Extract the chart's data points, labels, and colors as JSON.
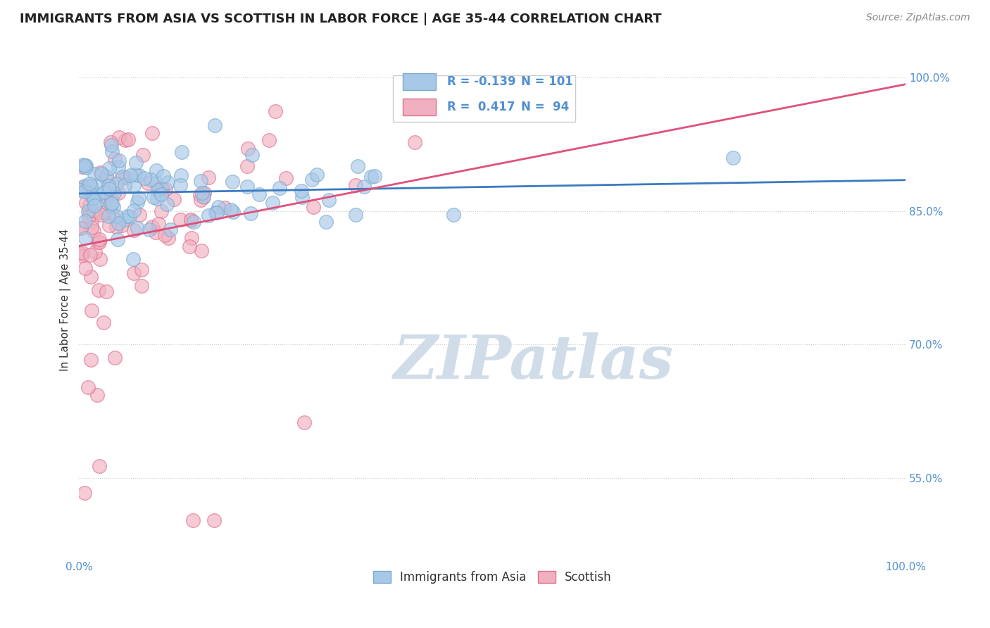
{
  "title": "IMMIGRANTS FROM ASIA VS SCOTTISH IN LABOR FORCE | AGE 35-44 CORRELATION CHART",
  "source": "Source: ZipAtlas.com",
  "ylabel": "In Labor Force | Age 35-44",
  "xlim": [
    0.0,
    1.0
  ],
  "ylim": [
    0.46,
    1.04
  ],
  "yticks": [
    0.55,
    0.7,
    0.85,
    1.0
  ],
  "ytick_labels": [
    "55.0%",
    "70.0%",
    "85.0%",
    "100.0%"
  ],
  "blue_R": -0.139,
  "blue_N": 101,
  "pink_R": 0.417,
  "pink_N": 94,
  "blue_color": "#a8c8e8",
  "pink_color": "#f0b0c0",
  "blue_edge_color": "#7aabce",
  "pink_edge_color": "#e07090",
  "blue_line_color": "#3a7abf",
  "pink_line_color": "#e0507a",
  "tick_color": "#5090d0",
  "background_color": "#ffffff",
  "watermark_color": "#d0dde8",
  "legend_label_blue": "Immigrants from Asia",
  "legend_label_pink": "Scottish",
  "title_fontsize": 13,
  "source_fontsize": 10,
  "axis_label_fontsize": 11,
  "tick_fontsize": 11,
  "legend_fontsize": 12
}
